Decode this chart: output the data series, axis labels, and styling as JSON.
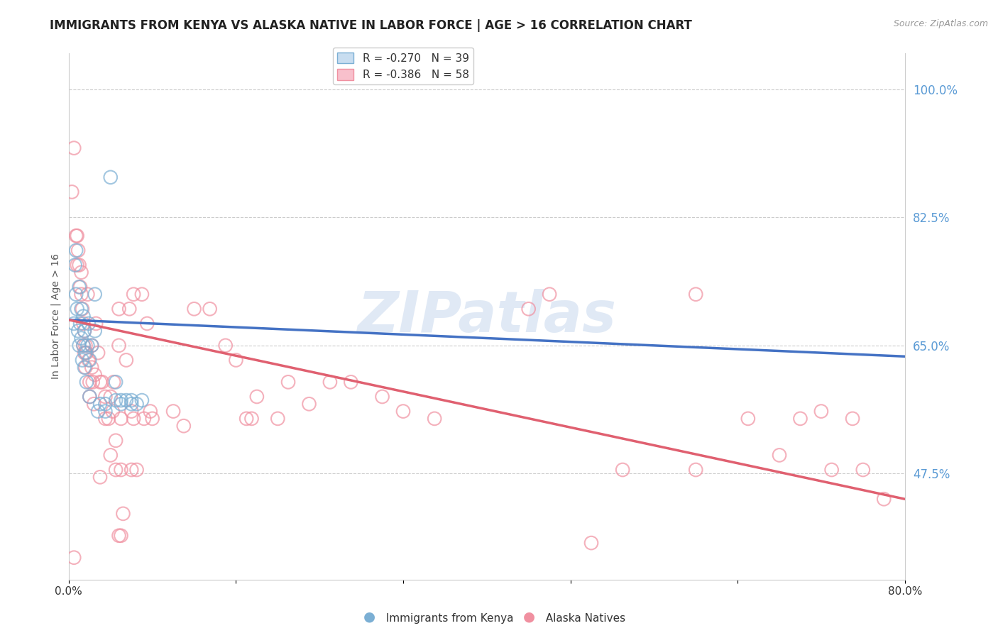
{
  "title": "IMMIGRANTS FROM KENYA VS ALASKA NATIVE IN LABOR FORCE | AGE > 16 CORRELATION CHART",
  "source": "Source: ZipAtlas.com",
  "xlabel": "",
  "ylabel": "In Labor Force | Age > 16",
  "xlim": [
    0.0,
    0.8
  ],
  "ylim": [
    0.33,
    1.05
  ],
  "yticks": [
    0.475,
    0.65,
    0.825,
    1.0
  ],
  "ytick_labels": [
    "47.5%",
    "65.0%",
    "82.5%",
    "100.0%"
  ],
  "xticks": [
    0.0,
    0.16,
    0.32,
    0.48,
    0.64,
    0.8
  ],
  "xtick_labels": [
    "0.0%",
    "",
    "",
    "",
    "",
    "80.0%"
  ],
  "watermark": "ZIPatlas",
  "kenya_color": "#7bafd4",
  "alaska_color": "#f090a0",
  "kenya_line_color": "#4472c4",
  "alaska_line_color": "#e06070",
  "kenya_scatter": [
    [
      0.005,
      0.68
    ],
    [
      0.006,
      0.76
    ],
    [
      0.007,
      0.78
    ],
    [
      0.007,
      0.72
    ],
    [
      0.008,
      0.7
    ],
    [
      0.009,
      0.67
    ],
    [
      0.01,
      0.73
    ],
    [
      0.01,
      0.65
    ],
    [
      0.011,
      0.68
    ],
    [
      0.012,
      0.7
    ],
    [
      0.012,
      0.66
    ],
    [
      0.013,
      0.63
    ],
    [
      0.014,
      0.69
    ],
    [
      0.014,
      0.65
    ],
    [
      0.015,
      0.67
    ],
    [
      0.015,
      0.62
    ],
    [
      0.016,
      0.64
    ],
    [
      0.017,
      0.6
    ],
    [
      0.018,
      0.65
    ],
    [
      0.019,
      0.68
    ],
    [
      0.02,
      0.63
    ],
    [
      0.02,
      0.58
    ],
    [
      0.022,
      0.65
    ],
    [
      0.025,
      0.72
    ],
    [
      0.025,
      0.67
    ],
    [
      0.028,
      0.56
    ],
    [
      0.03,
      0.57
    ],
    [
      0.035,
      0.57
    ],
    [
      0.035,
      0.56
    ],
    [
      0.04,
      0.88
    ],
    [
      0.045,
      0.6
    ],
    [
      0.045,
      0.575
    ],
    [
      0.05,
      0.57
    ],
    [
      0.05,
      0.575
    ],
    [
      0.055,
      0.575
    ],
    [
      0.06,
      0.575
    ],
    [
      0.06,
      0.57
    ],
    [
      0.065,
      0.57
    ],
    [
      0.07,
      0.575
    ]
  ],
  "alaska_scatter": [
    [
      0.003,
      0.86
    ],
    [
      0.005,
      0.92
    ],
    [
      0.007,
      0.8
    ],
    [
      0.008,
      0.8
    ],
    [
      0.008,
      0.76
    ],
    [
      0.009,
      0.78
    ],
    [
      0.01,
      0.76
    ],
    [
      0.011,
      0.73
    ],
    [
      0.012,
      0.75
    ],
    [
      0.012,
      0.72
    ],
    [
      0.013,
      0.7
    ],
    [
      0.014,
      0.68
    ],
    [
      0.014,
      0.65
    ],
    [
      0.015,
      0.67
    ],
    [
      0.015,
      0.64
    ],
    [
      0.016,
      0.65
    ],
    [
      0.016,
      0.62
    ],
    [
      0.017,
      0.64
    ],
    [
      0.018,
      0.72
    ],
    [
      0.019,
      0.63
    ],
    [
      0.02,
      0.6
    ],
    [
      0.02,
      0.58
    ],
    [
      0.022,
      0.65
    ],
    [
      0.022,
      0.62
    ],
    [
      0.023,
      0.6
    ],
    [
      0.024,
      0.57
    ],
    [
      0.025,
      0.61
    ],
    [
      0.026,
      0.68
    ],
    [
      0.028,
      0.64
    ],
    [
      0.03,
      0.6
    ],
    [
      0.032,
      0.6
    ],
    [
      0.035,
      0.58
    ],
    [
      0.035,
      0.55
    ],
    [
      0.038,
      0.55
    ],
    [
      0.04,
      0.58
    ],
    [
      0.04,
      0.5
    ],
    [
      0.042,
      0.56
    ],
    [
      0.043,
      0.6
    ],
    [
      0.045,
      0.48
    ],
    [
      0.048,
      0.7
    ],
    [
      0.048,
      0.65
    ],
    [
      0.05,
      0.55
    ],
    [
      0.05,
      0.48
    ],
    [
      0.052,
      0.42
    ],
    [
      0.055,
      0.63
    ],
    [
      0.058,
      0.7
    ],
    [
      0.06,
      0.48
    ],
    [
      0.062,
      0.55
    ],
    [
      0.065,
      0.48
    ],
    [
      0.07,
      0.72
    ],
    [
      0.072,
      0.55
    ],
    [
      0.075,
      0.68
    ],
    [
      0.078,
      0.56
    ],
    [
      0.005,
      0.36
    ],
    [
      0.03,
      0.47
    ],
    [
      0.045,
      0.52
    ],
    [
      0.048,
      0.39
    ],
    [
      0.05,
      0.39
    ],
    [
      0.06,
      0.56
    ],
    [
      0.062,
      0.72
    ],
    [
      0.5,
      0.38
    ],
    [
      0.53,
      0.48
    ],
    [
      0.6,
      0.72
    ],
    [
      0.65,
      0.55
    ],
    [
      0.7,
      0.55
    ],
    [
      0.72,
      0.56
    ],
    [
      0.73,
      0.48
    ],
    [
      0.75,
      0.55
    ],
    [
      0.76,
      0.48
    ],
    [
      0.78,
      0.44
    ],
    [
      0.68,
      0.5
    ],
    [
      0.6,
      0.48
    ],
    [
      0.44,
      0.7
    ],
    [
      0.46,
      0.72
    ],
    [
      0.12,
      0.7
    ],
    [
      0.135,
      0.7
    ],
    [
      0.15,
      0.65
    ],
    [
      0.16,
      0.63
    ],
    [
      0.17,
      0.55
    ],
    [
      0.175,
      0.55
    ],
    [
      0.18,
      0.58
    ],
    [
      0.2,
      0.55
    ],
    [
      0.21,
      0.6
    ],
    [
      0.23,
      0.57
    ],
    [
      0.25,
      0.6
    ],
    [
      0.27,
      0.6
    ],
    [
      0.3,
      0.58
    ],
    [
      0.32,
      0.56
    ],
    [
      0.35,
      0.55
    ],
    [
      0.1,
      0.56
    ],
    [
      0.11,
      0.54
    ],
    [
      0.08,
      0.55
    ]
  ],
  "kenya_regression": {
    "x_start": 0.0,
    "y_start": 0.685,
    "x_end": 0.8,
    "y_end": 0.635
  },
  "alaska_regression": {
    "x_start": 0.0,
    "y_start": 0.685,
    "x_end": 0.8,
    "y_end": 0.44
  },
  "dashed_regression": {
    "x_start": 0.0,
    "y_start": 0.685,
    "x_end": 0.8,
    "y_end": 0.44
  },
  "background_color": "#ffffff",
  "grid_color": "#cccccc",
  "title_color": "#222222",
  "axis_label_color": "#555555",
  "right_tick_color": "#5b9bd5",
  "legend_box_color": "#ffffff"
}
